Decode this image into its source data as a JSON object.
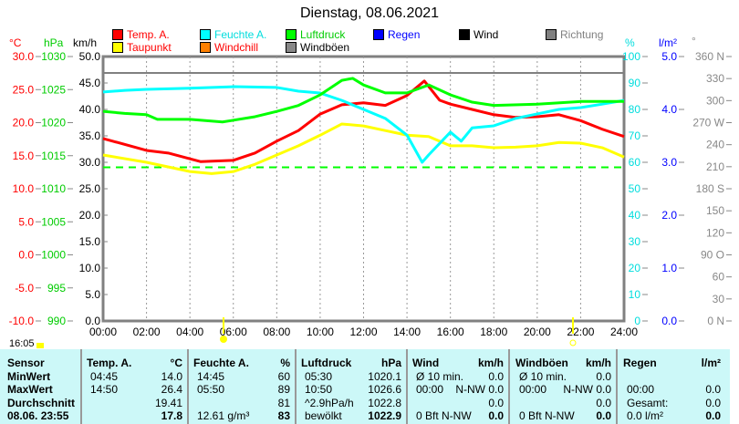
{
  "title": "Dienstag, 08.06.2021",
  "legend": [
    {
      "label": "Temp. A.",
      "color": "#ff0000",
      "text": "#ff0000"
    },
    {
      "label": "Feuchte A.",
      "color": "#00ffff",
      "text": "#00dddd"
    },
    {
      "label": "Luftdruck",
      "color": "#00ff00",
      "text": "#00cc00"
    },
    {
      "label": "Regen",
      "color": "#0000ff",
      "text": "#0000ff"
    },
    {
      "label": "Wind",
      "color": "#000000",
      "text": "#000000"
    },
    {
      "label": "Richtung",
      "color": "#808080",
      "text": "#808080"
    },
    {
      "label": "Taupunkt",
      "color": "#ffff00",
      "text": "#ff0000"
    },
    {
      "label": "Windchill",
      "color": "#ff8000",
      "text": "#ff0000"
    },
    {
      "label": "Windböen",
      "color": "#888888",
      "text": "#000000"
    }
  ],
  "units": {
    "temp": "°C",
    "hpa": "hPa",
    "kmh": "km/h",
    "pct": "%",
    "rain": "l/m²",
    "deg": "°"
  },
  "sun": {
    "label": "16:05"
  },
  "chart_data": {
    "type": "line",
    "title": "Dienstag, 08.06.2021",
    "xlabel": "",
    "xlim": [
      0,
      24
    ],
    "x_ticks": [
      "00:00",
      "02:00",
      "04:00",
      "06:00",
      "08:00",
      "10:00",
      "12:00",
      "14:00",
      "16:00",
      "18:00",
      "20:00",
      "22:00",
      "24:00"
    ],
    "axes": {
      "temp": {
        "ylim": [
          -10,
          30
        ],
        "ticks": [
          "30.0",
          "25.0",
          "20.0",
          "15.0",
          "10.0",
          "5.0",
          "0.0",
          "-5.0",
          "-10.0"
        ]
      },
      "hpa": {
        "ylim": [
          990,
          1030
        ],
        "ticks": [
          "1030",
          "1025",
          "1020",
          "1015",
          "1010",
          "1005",
          "1000",
          "995",
          "990"
        ]
      },
      "kmh": {
        "ylim": [
          0,
          50
        ],
        "ticks": [
          "50.0",
          "45.0",
          "40.0",
          "35.0",
          "30.0",
          "25.0",
          "20.0",
          "15.0",
          "10.0",
          "5.0",
          "0.0"
        ]
      },
      "pct": {
        "ylim": [
          0,
          100
        ],
        "ticks": [
          "100",
          "90",
          "80",
          "70",
          "60",
          "50",
          "40",
          "30",
          "20",
          "10",
          "0"
        ]
      },
      "rain": {
        "ylim": [
          0,
          5
        ],
        "ticks": [
          "5.0",
          "4.0",
          "3.0",
          "2.0",
          "1.0",
          "0.0"
        ]
      },
      "deg": {
        "ylim": [
          0,
          360
        ],
        "ticks": [
          "360 N",
          "330",
          "300",
          "270 W",
          "240",
          "210",
          "180 S",
          "150",
          "120",
          "90 O",
          "60",
          "30",
          "0 N"
        ]
      }
    },
    "series": [
      {
        "name": "Temp. A.",
        "axis": "temp",
        "color": "#ff0000",
        "points": [
          [
            0,
            17.6
          ],
          [
            2,
            15.8
          ],
          [
            3,
            15.4
          ],
          [
            4.5,
            14.1
          ],
          [
            6,
            14.3
          ],
          [
            7,
            15.4
          ],
          [
            8,
            17.2
          ],
          [
            9,
            18.8
          ],
          [
            10,
            21.3
          ],
          [
            11,
            22.7
          ],
          [
            12,
            23.0
          ],
          [
            13,
            22.6
          ],
          [
            14,
            24.1
          ],
          [
            14.8,
            26.3
          ],
          [
            15.5,
            23.4
          ],
          [
            16,
            22.8
          ],
          [
            17,
            22.0
          ],
          [
            18,
            21.2
          ],
          [
            19,
            20.8
          ],
          [
            20,
            20.9
          ],
          [
            21,
            21.2
          ],
          [
            22,
            20.3
          ],
          [
            23,
            19.0
          ],
          [
            24,
            17.9
          ]
        ]
      },
      {
        "name": "Taupunkt",
        "axis": "temp",
        "color": "#ffff00",
        "points": [
          [
            0,
            15.1
          ],
          [
            2,
            14.0
          ],
          [
            4,
            12.6
          ],
          [
            5,
            12.3
          ],
          [
            6,
            12.6
          ],
          [
            7,
            13.7
          ],
          [
            8,
            15.1
          ],
          [
            9,
            16.5
          ],
          [
            10,
            18.1
          ],
          [
            11,
            19.8
          ],
          [
            12,
            19.5
          ],
          [
            13,
            18.8
          ],
          [
            14,
            18.1
          ],
          [
            15,
            17.9
          ],
          [
            16,
            16.5
          ],
          [
            17,
            16.5
          ],
          [
            18,
            16.2
          ],
          [
            19,
            16.3
          ],
          [
            20,
            16.5
          ],
          [
            21,
            17.0
          ],
          [
            22,
            16.9
          ],
          [
            23,
            16.2
          ],
          [
            24,
            14.8
          ]
        ]
      },
      {
        "name": "Feuchte A.",
        "axis": "pct",
        "color": "#00ffff",
        "points": [
          [
            0,
            86.6
          ],
          [
            1,
            87.2
          ],
          [
            2,
            87.6
          ],
          [
            4,
            88
          ],
          [
            6,
            88.6
          ],
          [
            8,
            88.3
          ],
          [
            9,
            86.9
          ],
          [
            10,
            86.2
          ],
          [
            11,
            83.4
          ],
          [
            12,
            80
          ],
          [
            13,
            76.6
          ],
          [
            14,
            70.3
          ],
          [
            14.7,
            60
          ],
          [
            15,
            62.8
          ],
          [
            16,
            71.4
          ],
          [
            16.5,
            68
          ],
          [
            17,
            73
          ],
          [
            18,
            73.8
          ],
          [
            19,
            76.6
          ],
          [
            20,
            78.3
          ],
          [
            21,
            80
          ],
          [
            22,
            80.7
          ],
          [
            23,
            82
          ],
          [
            24,
            83.4
          ]
        ]
      },
      {
        "name": "Luftdruck",
        "axis": "hpa",
        "color": "#00ff00",
        "points": [
          [
            0,
            1021.7
          ],
          [
            1,
            1021.4
          ],
          [
            2,
            1021.2
          ],
          [
            2.5,
            1020.5
          ],
          [
            4,
            1020.5
          ],
          [
            5.5,
            1020.1
          ],
          [
            7,
            1020.9
          ],
          [
            8,
            1021.7
          ],
          [
            9,
            1022.6
          ],
          [
            10,
            1024.2
          ],
          [
            11,
            1026.4
          ],
          [
            11.5,
            1026.7
          ],
          [
            12,
            1025.7
          ],
          [
            13,
            1024.5
          ],
          [
            14,
            1024.5
          ],
          [
            15,
            1025.7
          ],
          [
            16,
            1024.2
          ],
          [
            17,
            1023.1
          ],
          [
            18,
            1022.6
          ],
          [
            20,
            1022.8
          ],
          [
            22,
            1023.2
          ],
          [
            24,
            1023.2
          ]
        ]
      }
    ],
    "reference_lines": [
      {
        "axis": "hpa",
        "value": 1013.25,
        "color": "#00ff00",
        "style": "dashed"
      }
    ]
  },
  "table": {
    "header": [
      "Sensor",
      "Temp. A.",
      "°C",
      "Feuchte A.",
      "%",
      "Luftdruck",
      "hPa",
      "Wind",
      "km/h",
      "Windböen",
      "km/h",
      "Regen",
      "l/m²"
    ],
    "rows": [
      [
        "MinWert",
        "04:45",
        "14.0",
        "14:45",
        "60",
        "05:30",
        "1020.1",
        "Ø 10 min.",
        "0.0",
        "Ø 10 min.",
        "0.0",
        "",
        ""
      ],
      [
        "MaxWert",
        "14:50",
        "26.4",
        "05:50",
        "89",
        "10:50",
        "1026.6",
        "00:00",
        "N-NW 0.0",
        "00:00",
        "N-NW 0.0",
        "00:00",
        "0.0"
      ],
      [
        "Durchschnitt",
        "",
        "19.41",
        "",
        "81",
        "^2.9hPa/h",
        "1022.8",
        "",
        "0.0",
        "",
        "0.0",
        "Gesamt:",
        "0.0"
      ],
      [
        "08.06. 23:55",
        "",
        "17.8",
        "12.61 g/m³",
        "83",
        "bewölkt",
        "1022.9",
        "0 Bft N-NW",
        "0.0",
        "0 Bft N-NW",
        "0.0",
        "0.0 l/m²",
        "0.0"
      ]
    ]
  }
}
